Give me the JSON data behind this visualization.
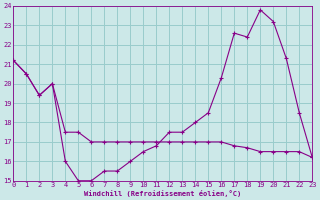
{
  "xlabel": "Windchill (Refroidissement éolien,°C)",
  "background_color": "#cce8e8",
  "line_color": "#880088",
  "grid_color": "#99cccc",
  "xlim": [
    0,
    23
  ],
  "ylim": [
    15,
    24
  ],
  "yticks": [
    15,
    16,
    17,
    18,
    19,
    20,
    21,
    22,
    23,
    24
  ],
  "xticks": [
    0,
    1,
    2,
    3,
    4,
    5,
    6,
    7,
    8,
    9,
    10,
    11,
    12,
    13,
    14,
    15,
    16,
    17,
    18,
    19,
    20,
    21,
    22,
    23
  ],
  "series1_x": [
    0,
    1,
    2,
    3,
    4,
    5,
    6,
    7,
    8,
    9,
    10,
    11,
    12,
    13,
    14,
    15,
    16,
    17,
    18,
    19,
    20,
    21,
    22,
    23
  ],
  "series1_y": [
    21.2,
    20.5,
    19.4,
    20.0,
    17.5,
    17.5,
    17.0,
    17.0,
    17.0,
    17.0,
    17.0,
    17.0,
    17.0,
    17.0,
    17.0,
    17.0,
    17.0,
    16.8,
    16.7,
    16.5,
    16.5,
    16.5,
    16.5,
    16.2
  ],
  "series2_x": [
    0,
    1,
    2,
    3,
    4,
    5,
    6,
    7,
    8,
    9,
    10,
    11,
    12,
    13,
    14,
    15,
    16,
    17,
    18,
    19,
    20,
    21,
    22,
    23
  ],
  "series2_y": [
    21.2,
    20.5,
    19.4,
    20.0,
    16.0,
    15.0,
    15.0,
    15.5,
    15.5,
    16.0,
    16.5,
    16.8,
    17.5,
    17.5,
    18.0,
    18.5,
    20.3,
    22.6,
    22.4,
    23.8,
    23.2,
    21.3,
    18.5,
    16.2
  ]
}
